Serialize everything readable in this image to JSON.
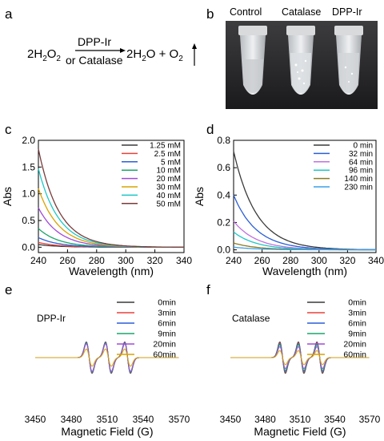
{
  "panel_letters": {
    "a": "a",
    "b": "b",
    "c": "c",
    "d": "d",
    "e": "e",
    "f": "f"
  },
  "reaction": {
    "reactant": "2H",
    "reactant_sub": "2",
    "reactant_tail": "O",
    "reactant_sub2": "2",
    "catalyst_top": "DPP-Ir",
    "catalyst_bottom": "or Catalase",
    "product": "2H",
    "product_sub": "2",
    "product_mid": "O + O",
    "product_sub2": "2"
  },
  "photo": {
    "labels": [
      "Control",
      "Catalase",
      "DPP-Ir"
    ]
  },
  "chart_data": [
    {
      "id": "c",
      "type": "line",
      "xlabel": "Wavelength (nm)",
      "ylabel": "Abs",
      "xlim": [
        240,
        340
      ],
      "ylim": [
        -0.1,
        2.0
      ],
      "xticks": [
        240,
        260,
        280,
        300,
        320,
        340
      ],
      "yticks": [
        0.0,
        0.5,
        1.0,
        1.5,
        2.0
      ],
      "ytick_labels": [
        "0.0",
        "0.5",
        "1.0",
        "1.5",
        "2.0"
      ],
      "legend_position": "top-right",
      "series": [
        {
          "name": "1.25 mM",
          "color": "#3a3a3a",
          "a240": 0.05,
          "decay_nm": 14
        },
        {
          "name": "2.5 mM",
          "color": "#e8413a",
          "a240": 0.09,
          "decay_nm": 14
        },
        {
          "name": "5 mM",
          "color": "#2a5fd8",
          "a240": 0.18,
          "decay_nm": 14
        },
        {
          "name": "10 mM",
          "color": "#19a66a",
          "a240": 0.35,
          "decay_nm": 14
        },
        {
          "name": "20 mM",
          "color": "#a04ad8",
          "a240": 0.74,
          "decay_nm": 14
        },
        {
          "name": "30 mM",
          "color": "#d9a300",
          "a240": 1.1,
          "decay_nm": 14
        },
        {
          "name": "40 mM",
          "color": "#1ec7c7",
          "a240": 1.47,
          "decay_nm": 14
        },
        {
          "name": "50 mM",
          "color": "#7a3a3a",
          "a240": 1.84,
          "decay_nm": 14
        }
      ]
    },
    {
      "id": "d",
      "type": "line",
      "xlabel": "Wavelength (nm)",
      "ylabel": "Abs",
      "xlim": [
        240,
        340
      ],
      "ylim": [
        -0.02,
        0.8
      ],
      "xticks": [
        240,
        260,
        280,
        300,
        320,
        340
      ],
      "yticks": [
        0.0,
        0.2,
        0.4,
        0.6,
        0.8
      ],
      "ytick_labels": [
        "0.0",
        "0.2",
        "0.4",
        "0.6",
        "0.8"
      ],
      "legend_position": "top-right",
      "series": [
        {
          "name": "0 min",
          "color": "#3a3a3a",
          "a240": 0.72,
          "decay_nm": 16
        },
        {
          "name": "32 min",
          "color": "#2a5fd8",
          "a240": 0.4,
          "decay_nm": 16
        },
        {
          "name": "64 min",
          "color": "#c070e0",
          "a240": 0.21,
          "decay_nm": 16
        },
        {
          "name": "96 min",
          "color": "#1ec7c7",
          "a240": 0.13,
          "decay_nm": 16
        },
        {
          "name": "140 min",
          "color": "#8a7a20",
          "a240": 0.05,
          "decay_nm": 16
        },
        {
          "name": "230 min",
          "color": "#3aa0e8",
          "a240": 0.02,
          "decay_nm": 16
        }
      ]
    },
    {
      "id": "e",
      "type": "line",
      "title": "DPP-Ir",
      "xlabel": "Magnetic Field (G)",
      "xlim": [
        3450,
        3570
      ],
      "xticks": [
        3450,
        3480,
        3510,
        3540,
        3570
      ],
      "legend_position": "top-right",
      "peaks": [
        3495,
        3511,
        3527
      ],
      "series": [
        {
          "name": "0min",
          "color": "#3a3a3a",
          "amplitude": 1.0
        },
        {
          "name": "3min",
          "color": "#e8413a",
          "amplitude": 0.97
        },
        {
          "name": "6min",
          "color": "#2a5fd8",
          "amplitude": 0.95
        },
        {
          "name": "9min",
          "color": "#19a66a",
          "amplitude": 0.92
        },
        {
          "name": "20min",
          "color": "#a04ad8",
          "amplitude": 0.88
        },
        {
          "name": "60min",
          "color": "#d9a300",
          "amplitude": 0.55
        }
      ]
    },
    {
      "id": "f",
      "type": "line",
      "title": "Catalase",
      "xlabel": "Magnetic Field (G)",
      "xlim": [
        3450,
        3570
      ],
      "xticks": [
        3450,
        3480,
        3510,
        3540,
        3570
      ],
      "legend_position": "top-right",
      "peaks": [
        3495,
        3511,
        3527
      ],
      "series": [
        {
          "name": "0min",
          "color": "#3a3a3a",
          "amplitude": 1.0
        },
        {
          "name": "3min",
          "color": "#e8413a",
          "amplitude": 0.92
        },
        {
          "name": "6min",
          "color": "#2a5fd8",
          "amplitude": 0.88
        },
        {
          "name": "9min",
          "color": "#19a66a",
          "amplitude": 0.82
        },
        {
          "name": "20min",
          "color": "#a04ad8",
          "amplitude": 0.7
        },
        {
          "name": "60min",
          "color": "#d9a300",
          "amplitude": 0.45
        }
      ]
    }
  ]
}
